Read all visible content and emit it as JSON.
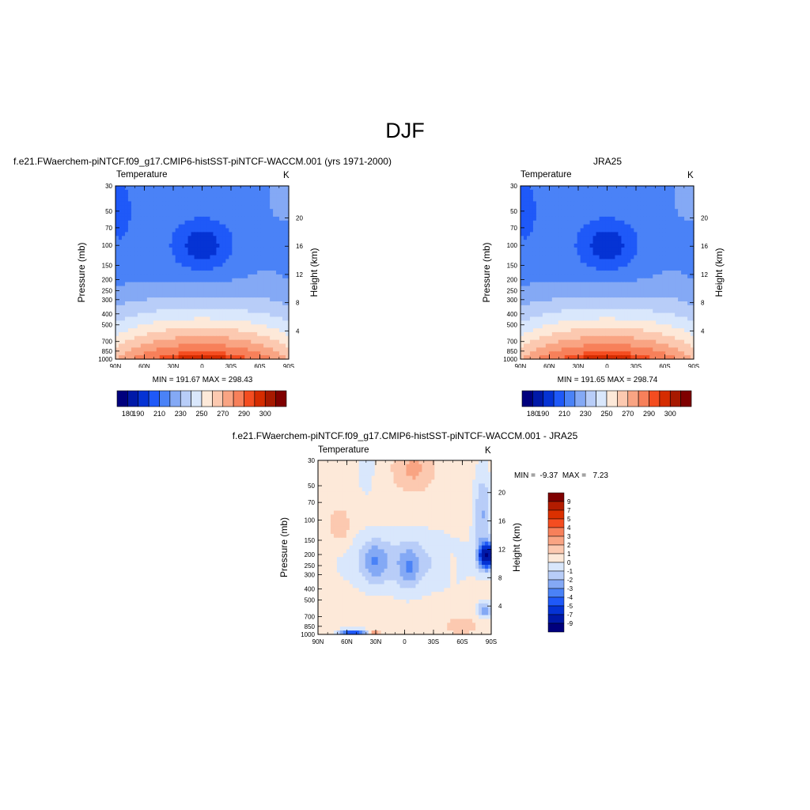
{
  "page": {
    "title": "DJF"
  },
  "chart_data": [
    {
      "type": "contour",
      "title": "f.e21.FWaerchem-piNTCF.f09_g17.CMIP6-histSST-piNTCF-WACCM.001 (yrs 1971-2000)",
      "left_label": "Temperature",
      "right_label": "K",
      "xlabel": "",
      "ylabel": "Pressure (mb)",
      "y2label": "Height (km)",
      "x_ticks": [
        "90N",
        "60N",
        "30N",
        "0",
        "30S",
        "60S",
        "90S"
      ],
      "y_ticks": [
        30,
        50,
        70,
        100,
        150,
        200,
        250,
        300,
        400,
        500,
        700,
        850,
        1000
      ],
      "y2_ticks": [
        20,
        16,
        12,
        8,
        4
      ],
      "stats_text": "MIN = 191.67  MAX = 298.43",
      "min": 191.67,
      "max": 298.43,
      "colorbar": {
        "orientation": "horizontal",
        "labels": [
          "180",
          "190",
          "210",
          "230",
          "250",
          "270",
          "290",
          "300"
        ],
        "colors": [
          "#00007d",
          "#0019a8",
          "#0533d4",
          "#1f59f8",
          "#4a82f7",
          "#84a9f5",
          "#b8cdf8",
          "#d9e7fc",
          "#fde9d9",
          "#fcc9b0",
          "#f9a483",
          "#f7805a",
          "#f44d20",
          "#d52c00",
          "#a71900",
          "#7f0000"
        ]
      }
    },
    {
      "type": "contour",
      "title": "JRA25",
      "left_label": "Temperature",
      "right_label": "K",
      "xlabel": "",
      "ylabel": "Pressure (mb)",
      "y2label": "Height (km)",
      "x_ticks": [
        "90N",
        "60N",
        "30N",
        "0",
        "30S",
        "60S",
        "90S"
      ],
      "y_ticks": [
        30,
        50,
        70,
        100,
        150,
        200,
        250,
        300,
        400,
        500,
        700,
        850,
        1000
      ],
      "y2_ticks": [
        20,
        16,
        12,
        8,
        4
      ],
      "stats_text": "MIN = 191.65  MAX = 298.74",
      "min": 191.65,
      "max": 298.74,
      "colorbar": {
        "orientation": "horizontal",
        "labels": [
          "180",
          "190",
          "210",
          "230",
          "250",
          "270",
          "290",
          "300"
        ],
        "colors": [
          "#00007d",
          "#0019a8",
          "#0533d4",
          "#1f59f8",
          "#4a82f7",
          "#84a9f5",
          "#b8cdf8",
          "#d9e7fc",
          "#fde9d9",
          "#fcc9b0",
          "#f9a483",
          "#f7805a",
          "#f44d20",
          "#d52c00",
          "#a71900",
          "#7f0000"
        ]
      }
    },
    {
      "type": "contour",
      "title": "f.e21.FWaerchem-piNTCF.f09_g17.CMIP6-histSST-piNTCF-WACCM.001 - JRA25",
      "left_label": "Temperature",
      "right_label": "K",
      "xlabel": "",
      "ylabel": "Pressure (mb)",
      "y2label": "Height (km)",
      "x_ticks": [
        "90N",
        "60N",
        "30N",
        "0",
        "30S",
        "60S",
        "90S"
      ],
      "y_ticks": [
        30,
        50,
        70,
        100,
        150,
        200,
        250,
        300,
        400,
        500,
        700,
        850,
        1000
      ],
      "y2_ticks": [
        20,
        16,
        12,
        8,
        4
      ],
      "stats_text": "MIN =  -9.37  MAX =   7.23",
      "min": -9.37,
      "max": 7.23,
      "colorbar": {
        "orientation": "vertical",
        "labels": [
          "9",
          "7",
          "5",
          "4",
          "3",
          "2",
          "1",
          "0",
          "-1",
          "-2",
          "-3",
          "-4",
          "-5",
          "-7",
          "-9"
        ],
        "colors": [
          "#7f0000",
          "#b31c00",
          "#db3000",
          "#f44d20",
          "#f7805a",
          "#f9a483",
          "#fcc9b0",
          "#fde9d9",
          "#d9e7fc",
          "#b8cdf8",
          "#84a9f5",
          "#4a82f7",
          "#1f59f8",
          "#0533d4",
          "#0019a8",
          "#00007d"
        ]
      }
    }
  ]
}
